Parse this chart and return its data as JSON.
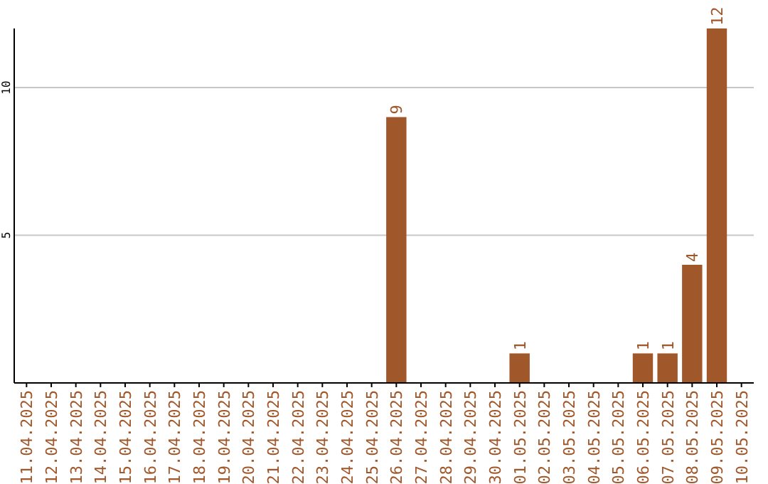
{
  "chart_data": {
    "type": "bar",
    "categories": [
      "11.04.2025",
      "12.04.2025",
      "13.04.2025",
      "14.04.2025",
      "15.04.2025",
      "16.04.2025",
      "17.04.2025",
      "18.04.2025",
      "19.04.2025",
      "20.04.2025",
      "21.04.2025",
      "22.04.2025",
      "23.04.2025",
      "24.04.2025",
      "25.04.2025",
      "26.04.2025",
      "27.04.2025",
      "28.04.2025",
      "29.04.2025",
      "30.04.2025",
      "01.05.2025",
      "02.05.2025",
      "03.05.2025",
      "04.05.2025",
      "05.05.2025",
      "06.05.2025",
      "07.05.2025",
      "08.05.2025",
      "09.05.2025",
      "10.05.2025"
    ],
    "values": [
      0,
      0,
      0,
      0,
      0,
      0,
      0,
      0,
      0,
      0,
      0,
      0,
      0,
      0,
      0,
      9,
      0,
      0,
      0,
      0,
      1,
      0,
      0,
      0,
      0,
      1,
      1,
      4,
      12,
      0
    ],
    "value_labels": [
      null,
      null,
      null,
      null,
      null,
      null,
      null,
      null,
      null,
      null,
      null,
      null,
      null,
      null,
      null,
      "9",
      null,
      null,
      null,
      null,
      "1",
      null,
      null,
      null,
      null,
      "1",
      "1",
      "4",
      "12",
      null
    ],
    "color": "#a0572a",
    "ylim": [
      0,
      12
    ],
    "yticks": [
      5,
      10
    ],
    "grid": "y"
  }
}
